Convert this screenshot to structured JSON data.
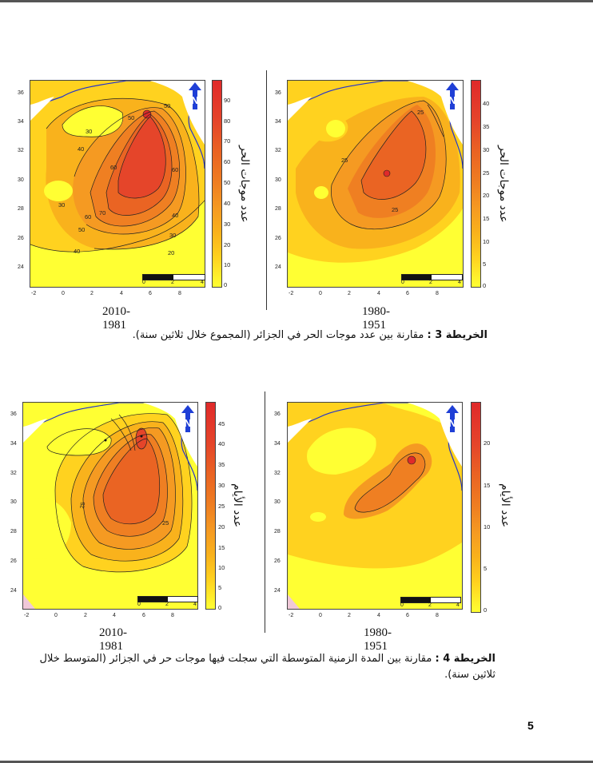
{
  "maps": {
    "m3_left": {
      "period": "2010-1981",
      "colorbar_ticks": [
        "90",
        "80",
        "70",
        "60",
        "50",
        "40",
        "30",
        "20",
        "10",
        "0"
      ],
      "colorbar_label": "عدد موجات الحر",
      "contour_labels": [
        "50",
        "50",
        "30",
        "40",
        "60",
        "60",
        "70",
        "60",
        "50",
        "40",
        "30",
        "20",
        "40",
        "30"
      ]
    },
    "m3_right": {
      "period": "1980-1951",
      "colorbar_ticks": [
        "40",
        "35",
        "30",
        "25",
        "20",
        "15",
        "10",
        "5",
        "0"
      ],
      "colorbar_label": "عدد موجات الحر",
      "contour_labels": [
        "25",
        "25",
        "25"
      ]
    },
    "m4_left": {
      "period": "2010-1981",
      "colorbar_ticks": [
        "45",
        "40",
        "35",
        "30",
        "25",
        "20",
        "15",
        "10",
        "5",
        "0"
      ],
      "colorbar_label": "عدد الأيام",
      "contour_labels": [
        "25",
        "25"
      ]
    },
    "m4_right": {
      "period": "1980-1951",
      "colorbar_ticks": [
        "20",
        "15",
        "10",
        "5",
        "0"
      ],
      "colorbar_label": "عدد الأيام",
      "contour_labels": []
    }
  },
  "axis": {
    "y_ticks": [
      "36",
      "34",
      "32",
      "30",
      "28",
      "26",
      "24"
    ],
    "x_ticks": [
      "-2",
      "0",
      "2",
      "4",
      "6",
      "8"
    ],
    "scale_ticks": [
      "0",
      "2",
      "4"
    ],
    "north": "N"
  },
  "captions": {
    "map3_title": "الخريطة 3 :",
    "map3_text": "مقارنة بين عدد موجات الحر في الجزائر (المجموع خلال ثلاثين سنة).",
    "map4_title": "الخريطة 4 :",
    "map4_text": "مقارنة بين المدة الزمنية المتوسطة التي سجلت فيها موجات حر في الجزائر (المتوسط خلال ثلاثين سنة)."
  },
  "page_number": "5",
  "colors": {
    "c0": "#ffff33",
    "c1": "#ffd21f",
    "c2": "#f9b21c",
    "c3": "#f59a22",
    "c4": "#ef7f22",
    "c5": "#ea6423",
    "c6": "#e5452a",
    "c7": "#e02a2a"
  }
}
